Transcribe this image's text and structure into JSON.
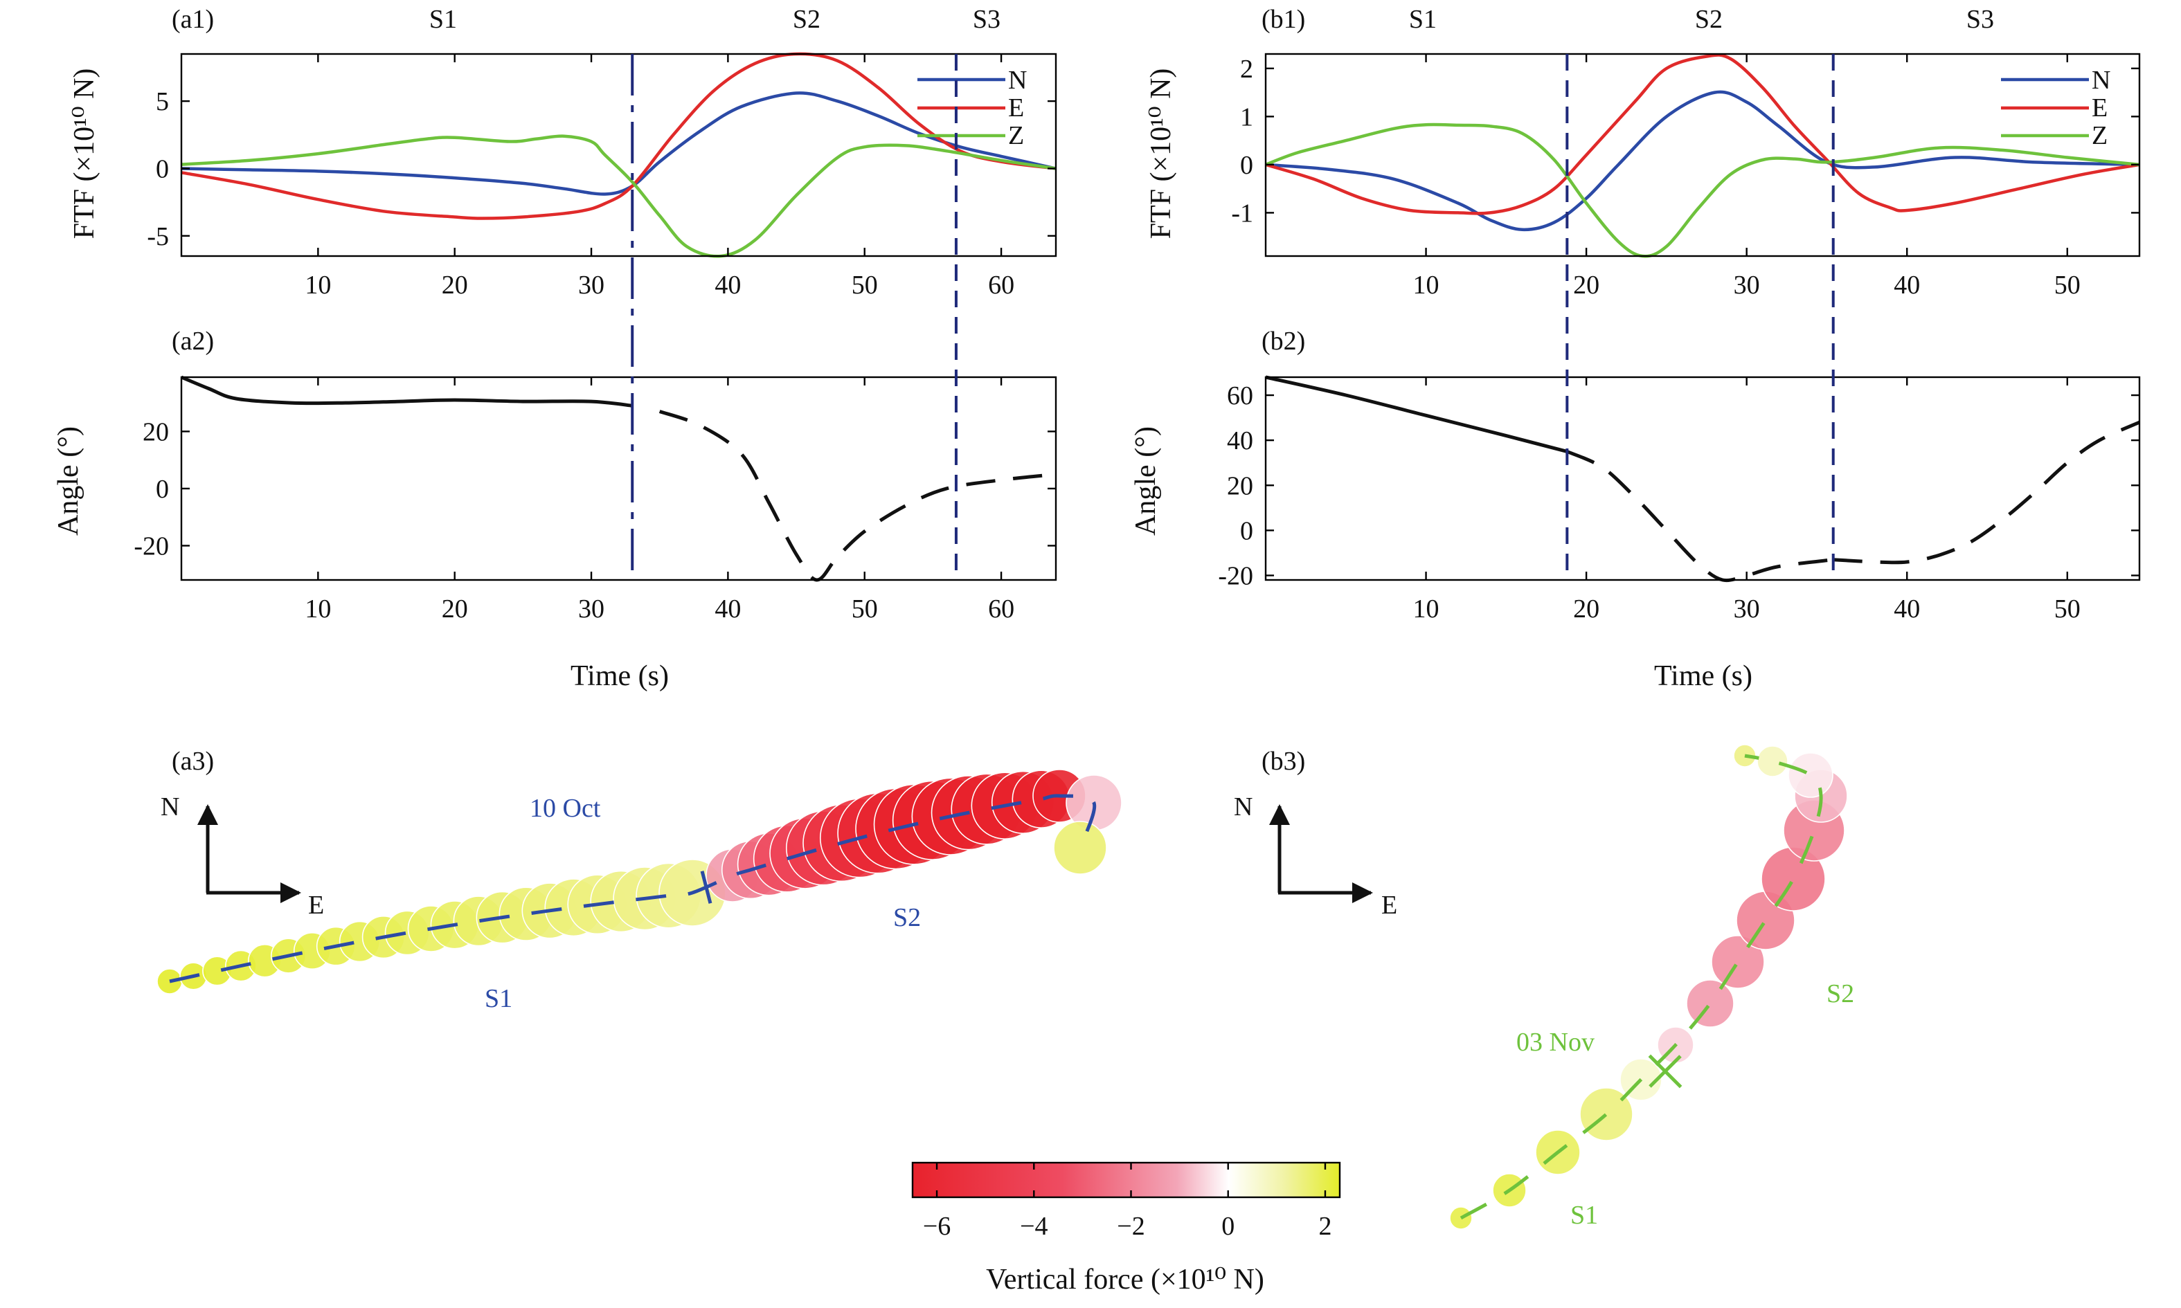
{
  "chart_data": [
    {
      "panel": "(a1)",
      "type": "line",
      "ylabel": "FTF (×10¹⁰ N)",
      "xlim": [
        0,
        64
      ],
      "ylim": [
        -6.5,
        8.5
      ],
      "xticks": [
        10,
        20,
        30,
        40,
        50,
        60
      ],
      "yticks": [
        -5,
        0,
        5
      ],
      "segments": [
        "S1",
        "S2",
        "S3"
      ],
      "boundaries": [
        33,
        56.7
      ],
      "legend": [
        "N",
        "E",
        "Z"
      ],
      "series": [
        {
          "name": "N",
          "color": "#2b4aa6",
          "x": [
            0,
            5,
            10,
            15,
            20,
            25,
            28,
            31,
            33,
            35,
            38,
            41,
            45,
            48,
            51,
            54,
            57,
            60,
            64
          ],
          "y": [
            0,
            -0.1,
            -0.2,
            -0.4,
            -0.7,
            -1.1,
            -1.5,
            -1.9,
            -1.3,
            0.5,
            2.8,
            4.6,
            5.6,
            5.0,
            3.9,
            2.6,
            1.6,
            0.9,
            0
          ]
        },
        {
          "name": "E",
          "color": "#e02a2a",
          "x": [
            0,
            5,
            10,
            15,
            20,
            22,
            25,
            29,
            31,
            33,
            36,
            39,
            42,
            45,
            48,
            51,
            54,
            57,
            60,
            64
          ],
          "y": [
            -0.3,
            -1.2,
            -2.3,
            -3.2,
            -3.6,
            -3.7,
            -3.6,
            -3.2,
            -2.6,
            -1.3,
            2.5,
            5.8,
            7.8,
            8.5,
            8.0,
            6.0,
            3.3,
            1.3,
            0.5,
            0
          ]
        },
        {
          "name": "Z",
          "color": "#6ec23c",
          "x": [
            0,
            5,
            10,
            15,
            18,
            20,
            24,
            26,
            28,
            30,
            31,
            33,
            35,
            37,
            39.5,
            42,
            45,
            48,
            50,
            53,
            56,
            60,
            64
          ],
          "y": [
            0.3,
            0.6,
            1.1,
            1.8,
            2.2,
            2.3,
            2.0,
            2.2,
            2.4,
            2.0,
            1.0,
            -1.0,
            -3.5,
            -5.8,
            -6.5,
            -5.3,
            -2.0,
            0.8,
            1.6,
            1.7,
            1.3,
            0.6,
            0
          ]
        }
      ]
    },
    {
      "panel": "(a2)",
      "type": "line",
      "xlabel": "Time (s)",
      "ylabel": "Angle (°)",
      "xlim": [
        0,
        64
      ],
      "ylim": [
        -32,
        39
      ],
      "xticks": [
        10,
        20,
        30,
        40,
        50,
        60
      ],
      "yticks": [
        -20,
        0,
        20
      ],
      "boundaries": [
        33,
        56.7
      ],
      "series": [
        {
          "name": "",
          "style": "solid",
          "color": "#111111",
          "x": [
            0,
            2,
            4,
            8,
            12,
            16,
            20,
            25,
            30,
            33
          ],
          "y": [
            39,
            35,
            31.5,
            30,
            30,
            30.5,
            31,
            30.5,
            30.5,
            29
          ]
        },
        {
          "name": "",
          "style": "dashed",
          "color": "#111111",
          "x": [
            35,
            38,
            41,
            43,
            45,
            46.5,
            48,
            50,
            53,
            56,
            60,
            64
          ],
          "y": [
            27,
            22,
            12,
            -5,
            -23,
            -32,
            -24,
            -15,
            -6,
            0,
            3,
            5
          ]
        }
      ]
    },
    {
      "panel": "(b1)",
      "type": "line",
      "ylabel": "FTF (×10¹⁰ N)",
      "xlim": [
        0,
        54.5
      ],
      "ylim": [
        -1.9,
        2.3
      ],
      "xticks": [
        10,
        20,
        30,
        40,
        50
      ],
      "yticks": [
        -1,
        0,
        1,
        2
      ],
      "segments": [
        "S1",
        "S2",
        "S3"
      ],
      "boundaries": [
        18.8,
        35.4
      ],
      "legend": [
        "N",
        "E",
        "Z"
      ],
      "series": [
        {
          "name": "N",
          "color": "#2b4aa6",
          "x": [
            0,
            4,
            8,
            12,
            14,
            16,
            18,
            20,
            22,
            25,
            28,
            30,
            32,
            35,
            38,
            43,
            48,
            54.5
          ],
          "y": [
            0,
            -0.1,
            -0.3,
            -0.8,
            -1.15,
            -1.35,
            -1.2,
            -0.7,
            0,
            1.0,
            1.5,
            1.3,
            0.8,
            0.05,
            -0.05,
            0.15,
            0.05,
            0
          ]
        },
        {
          "name": "E",
          "color": "#e02a2a",
          "x": [
            0,
            3,
            6,
            9,
            12,
            14,
            16,
            18,
            20,
            23,
            25,
            27.5,
            29,
            31,
            33,
            35,
            37,
            39,
            40,
            43,
            47,
            51,
            54.5
          ],
          "y": [
            0,
            -0.3,
            -0.7,
            -0.95,
            -1.0,
            -1.0,
            -0.85,
            -0.5,
            0.2,
            1.3,
            2.0,
            2.25,
            2.2,
            1.6,
            0.8,
            0.1,
            -0.6,
            -0.9,
            -0.95,
            -0.8,
            -0.5,
            -0.2,
            0
          ]
        },
        {
          "name": "Z",
          "color": "#6ec23c",
          "x": [
            0,
            2,
            5,
            8,
            10,
            12,
            14,
            16,
            18,
            20,
            22,
            23.5,
            25,
            27,
            29,
            31,
            33,
            35,
            38,
            42,
            46,
            50,
            54.5
          ],
          "y": [
            0,
            0.25,
            0.5,
            0.75,
            0.83,
            0.82,
            0.8,
            0.65,
            0.1,
            -0.8,
            -1.6,
            -1.9,
            -1.7,
            -0.9,
            -0.2,
            0.1,
            0.12,
            0.05,
            0.15,
            0.35,
            0.3,
            0.15,
            0
          ]
        }
      ]
    },
    {
      "panel": "(b2)",
      "type": "line",
      "xlabel": "Time (s)",
      "ylabel": "Angle (°)",
      "xlim": [
        0,
        54.5
      ],
      "ylim": [
        -22,
        68
      ],
      "xticks": [
        10,
        20,
        30,
        40,
        50
      ],
      "yticks": [
        -20,
        0,
        20,
        40,
        60
      ],
      "boundaries": [
        18.8,
        35.4
      ],
      "series": [
        {
          "name": "",
          "style": "solid",
          "color": "#111111",
          "x": [
            0,
            5,
            10,
            15,
            18.8
          ],
          "y": [
            68,
            60,
            51,
            42,
            35
          ]
        },
        {
          "name": "",
          "style": "dashed",
          "color": "#111111",
          "x": [
            18.8,
            21,
            23,
            25,
            27,
            28.5,
            30,
            32,
            35.4
          ],
          "y": [
            35,
            28,
            15,
            0,
            -15,
            -22,
            -20,
            -16,
            -13
          ]
        },
        {
          "name": "",
          "style": "dashed",
          "color": "#111111",
          "x": [
            35.4,
            38,
            40,
            42,
            44,
            46,
            48,
            50,
            52,
            54.5
          ],
          "y": [
            -13,
            -14,
            -14,
            -11,
            -5,
            5,
            17,
            30,
            40,
            48
          ]
        }
      ]
    },
    {
      "panel": "(a3)",
      "type": "scatter",
      "title": "10 Oct",
      "segment_labels": [
        "S1",
        "S2"
      ],
      "colorbar": {
        "label": "Vertical force (×10¹⁰ N)",
        "range": [
          -6.5,
          2.3
        ],
        "ticks": [
          -6,
          -4,
          -2,
          0,
          2
        ]
      }
    },
    {
      "panel": "(b3)",
      "type": "scatter",
      "title": "03 Nov",
      "segment_labels": [
        "S1",
        "S2"
      ]
    }
  ],
  "labels": {
    "a1": "(a1)",
    "a2": "(a2)",
    "a3": "(a3)",
    "b1": "(b1)",
    "b2": "(b2)",
    "b3": "(b3)",
    "s1": "S1",
    "s2": "S2",
    "s3": "S3",
    "n": "N",
    "e": "E",
    "z": "Z",
    "time": "Time (s)",
    "angle": "Angle (°)",
    "date_a": "10 Oct",
    "date_b": "03 Nov",
    "colorbar_title": "Vertical force (×10¹⁰ N)"
  },
  "colors": {
    "n": "#2b4aa6",
    "e": "#e02a2a",
    "z": "#6ec23c",
    "boundary": "#1f2a7a",
    "track_a": "#2b4aa6",
    "track_b": "#6ec23c"
  }
}
